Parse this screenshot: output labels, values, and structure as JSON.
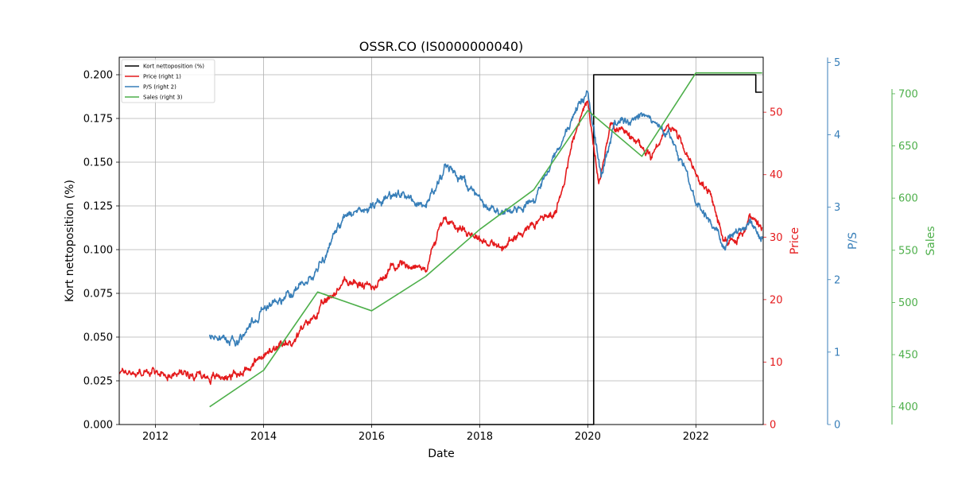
{
  "chart_data": {
    "type": "line",
    "title": "OSSR.CO (IS0000000040)",
    "xlabel": "Date",
    "colors": {
      "short": "#000000",
      "price": "#e41a1c",
      "ps": "#377eb8",
      "sales": "#4daf4a",
      "grid": "#b0b0b0"
    },
    "grid": true,
    "legend_position": "top-left",
    "x_range": [
      "2011-05-01",
      "2023-04-01"
    ],
    "x_ticks": [
      "2012",
      "2014",
      "2016",
      "2018",
      "2020",
      "2022"
    ],
    "axes": {
      "left": {
        "label": "Kort nettoposition (%)",
        "ylim": [
          0,
          0.21
        ],
        "ticks": [
          "0.000",
          "0.025",
          "0.050",
          "0.075",
          "0.100",
          "0.125",
          "0.150",
          "0.175",
          "0.200"
        ],
        "tick_values": [
          0,
          0.025,
          0.05,
          0.075,
          0.1,
          0.125,
          0.15,
          0.175,
          0.2
        ]
      },
      "right1": {
        "label": "Price",
        "ylim": [
          0,
          58.8
        ],
        "ticks": [
          "0",
          "10",
          "20",
          "30",
          "40",
          "50"
        ],
        "tick_values": [
          0,
          10,
          20,
          30,
          40,
          50
        ]
      },
      "right2": {
        "label": "P/S",
        "ylim": [
          0,
          5.07
        ],
        "ticks": [
          "0",
          "1",
          "2",
          "3",
          "4",
          "5"
        ],
        "tick_values": [
          0,
          1,
          2,
          3,
          4,
          5
        ]
      },
      "right3": {
        "label": "Sales",
        "ylim": [
          383,
          735
        ],
        "ticks": [
          "400",
          "450",
          "500",
          "550",
          "600",
          "650",
          "700"
        ],
        "tick_values": [
          400,
          450,
          500,
          550,
          600,
          650,
          700
        ]
      }
    },
    "series": [
      {
        "name": "Kort nettoposition (%)",
        "key": "short",
        "axis": "left",
        "step": true,
        "points": [
          [
            "2012-10-25",
            0
          ],
          [
            "2020-02-10",
            0
          ],
          [
            "2020-02-10",
            0.2
          ],
          [
            "2023-02-10",
            0.2
          ],
          [
            "2023-02-10",
            0.19
          ],
          [
            "2023-03-25",
            0.19
          ]
        ]
      },
      {
        "name": "Price (right 1)",
        "key": "price",
        "axis": "right1",
        "noise": 0.8,
        "points": [
          [
            "2011-05-01",
            8.5
          ],
          [
            "2012-01-01",
            8.2
          ],
          [
            "2012-10-01",
            8.3
          ],
          [
            "2013-01-01",
            7.5
          ],
          [
            "2013-07-01",
            8
          ],
          [
            "2014-01-01",
            11
          ],
          [
            "2014-07-01",
            13
          ],
          [
            "2015-01-01",
            18
          ],
          [
            "2015-07-01",
            23
          ],
          [
            "2016-01-01",
            22
          ],
          [
            "2016-07-01",
            26
          ],
          [
            "2017-01-01",
            25
          ],
          [
            "2017-05-01",
            33
          ],
          [
            "2018-01-01",
            30
          ],
          [
            "2018-06-01",
            28
          ],
          [
            "2018-12-01",
            32
          ],
          [
            "2019-06-01",
            34
          ],
          [
            "2019-10-01",
            46
          ],
          [
            "2020-01-01",
            52
          ],
          [
            "2020-03-15",
            38
          ],
          [
            "2020-06-01",
            48
          ],
          [
            "2020-10-01",
            46
          ],
          [
            "2021-03-01",
            43
          ],
          [
            "2021-07-01",
            48
          ],
          [
            "2021-10-01",
            45
          ],
          [
            "2022-01-01",
            40
          ],
          [
            "2022-04-01",
            37
          ],
          [
            "2022-07-01",
            30
          ],
          [
            "2022-10-01",
            29
          ],
          [
            "2023-01-01",
            33
          ],
          [
            "2023-03-25",
            31
          ]
        ]
      },
      {
        "name": "P/S (right 2)",
        "key": "ps",
        "axis": "right2",
        "noise": 0.07,
        "points": [
          [
            "2013-01-01",
            1.2
          ],
          [
            "2013-07-01",
            1.15
          ],
          [
            "2014-01-01",
            1.6
          ],
          [
            "2014-07-01",
            1.8
          ],
          [
            "2015-01-01",
            2.1
          ],
          [
            "2015-07-01",
            2.9
          ],
          [
            "2016-01-01",
            3.0
          ],
          [
            "2016-07-01",
            3.2
          ],
          [
            "2017-01-01",
            3.0
          ],
          [
            "2017-06-01",
            3.6
          ],
          [
            "2018-01-01",
            3.1
          ],
          [
            "2018-06-01",
            2.9
          ],
          [
            "2019-01-01",
            3.1
          ],
          [
            "2019-10-01",
            4.3
          ],
          [
            "2020-01-01",
            4.6
          ],
          [
            "2020-04-01",
            3.4
          ],
          [
            "2020-07-01",
            4.2
          ],
          [
            "2021-01-01",
            4.3
          ],
          [
            "2021-07-01",
            4.0
          ],
          [
            "2022-01-01",
            3.1
          ],
          [
            "2022-07-01",
            2.5
          ],
          [
            "2023-01-01",
            2.8
          ],
          [
            "2023-03-25",
            2.55
          ]
        ]
      },
      {
        "name": "Sales (right 3)",
        "key": "sales",
        "axis": "right3",
        "points": [
          [
            "2013-01-01",
            400
          ],
          [
            "2014-01-01",
            435
          ],
          [
            "2015-01-01",
            510
          ],
          [
            "2016-01-01",
            492
          ],
          [
            "2017-01-01",
            525
          ],
          [
            "2018-01-01",
            570
          ],
          [
            "2019-01-01",
            608
          ],
          [
            "2020-01-01",
            684
          ],
          [
            "2021-01-01",
            640
          ],
          [
            "2022-01-01",
            720
          ],
          [
            "2023-03-25",
            720
          ]
        ]
      }
    ]
  }
}
